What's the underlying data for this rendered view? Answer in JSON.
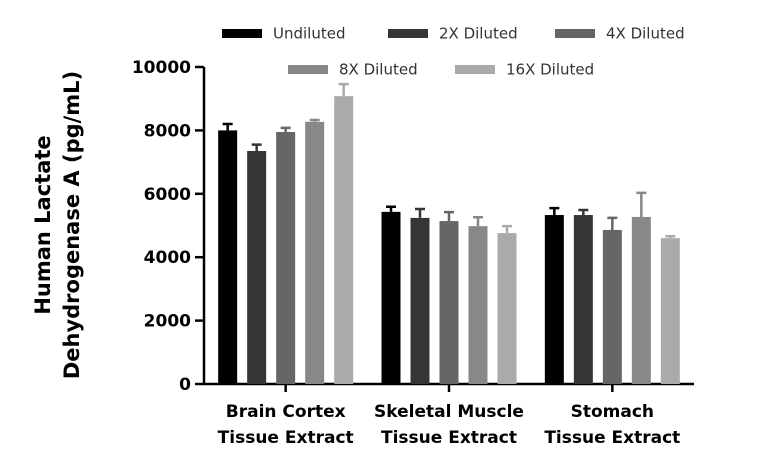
{
  "chart_data": {
    "type": "bar",
    "y_label": [
      "Human Lactate",
      "Dehydrogenase A (pg/mL)"
    ],
    "categories": [
      [
        "Brain Cortex",
        "Tissue Extract"
      ],
      [
        "Skeletal Muscle",
        "Tissue Extract"
      ],
      [
        "Stomach",
        "Tissue Extract"
      ]
    ],
    "series": [
      {
        "name": "Undiluted",
        "color": "#000000",
        "values": [
          8000,
          5430,
          5330
        ],
        "errors": [
          200,
          160,
          220
        ]
      },
      {
        "name": "2X Diluted",
        "color": "#353535",
        "values": [
          7350,
          5240,
          5330
        ],
        "errors": [
          200,
          280,
          160
        ]
      },
      {
        "name": "4X Diluted",
        "color": "#666666",
        "values": [
          7950,
          5140,
          4860
        ],
        "errors": [
          130,
          280,
          380
        ]
      },
      {
        "name": "8X Diluted",
        "color": "#888888",
        "values": [
          8270,
          4980,
          5270
        ],
        "errors": [
          60,
          280,
          760
        ]
      },
      {
        "name": "16X Diluted",
        "color": "#aaaaaa",
        "values": [
          9080,
          4760,
          4600
        ],
        "errors": [
          380,
          220,
          60
        ]
      }
    ],
    "ylim": [
      0,
      10000
    ],
    "yticks": [
      0,
      2000,
      4000,
      6000,
      8000,
      10000
    ]
  }
}
